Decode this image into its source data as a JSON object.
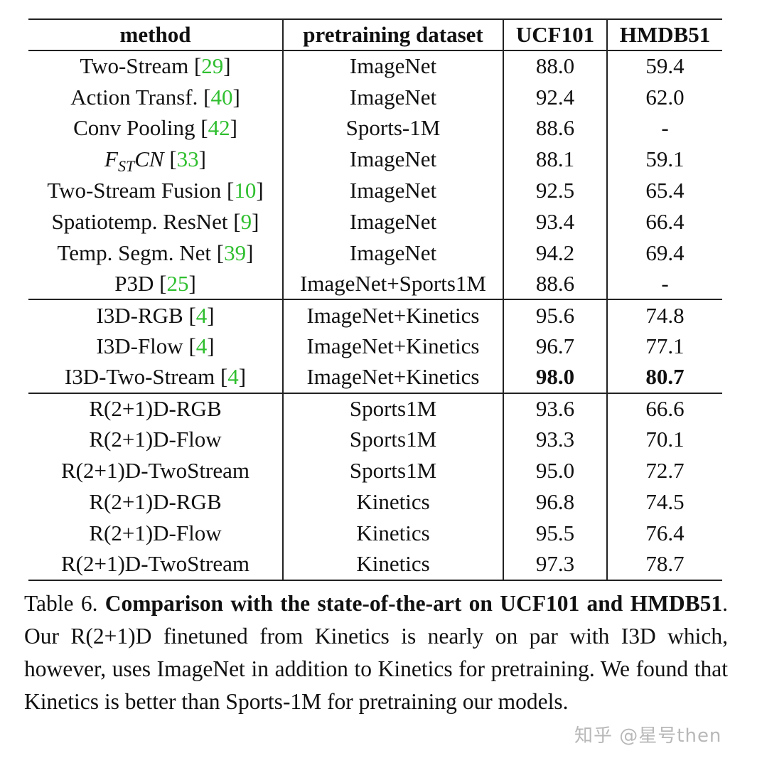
{
  "table": {
    "headers": {
      "method": "method",
      "pretraining": "pretraining dataset",
      "ucf": "UCF101",
      "hmdb": "HMDB51"
    },
    "groups": [
      {
        "rows": [
          {
            "method": "Two-Stream",
            "ref": "29",
            "pretraining": "ImageNet",
            "ucf": "88.0",
            "hmdb": "59.4"
          },
          {
            "method": "Action Transf.",
            "ref": "40",
            "pretraining": "ImageNet",
            "ucf": "92.4",
            "hmdb": "62.0"
          },
          {
            "method": "Conv Pooling",
            "ref": "42",
            "pretraining": "Sports-1M",
            "ucf": "88.6",
            "hmdb": "-"
          },
          {
            "method": "F",
            "method_sub": "ST",
            "method_tail": "CN",
            "ref": "33",
            "pretraining": "ImageNet",
            "ucf": "88.1",
            "hmdb": "59.1"
          },
          {
            "method": "Two-Stream Fusion",
            "ref": "10",
            "pretraining": "ImageNet",
            "ucf": "92.5",
            "hmdb": "65.4"
          },
          {
            "method": "Spatiotemp. ResNet",
            "ref": "9",
            "pretraining": "ImageNet",
            "ucf": "93.4",
            "hmdb": "66.4"
          },
          {
            "method": "Temp. Segm. Net",
            "ref": "39",
            "pretraining": "ImageNet",
            "ucf": "94.2",
            "hmdb": "69.4"
          },
          {
            "method": "P3D",
            "ref": "25",
            "pretraining": "ImageNet+Sports1M",
            "ucf": "88.6",
            "hmdb": "-"
          }
        ]
      },
      {
        "rows": [
          {
            "method": "I3D-RGB",
            "ref": "4",
            "pretraining": "ImageNet+Kinetics",
            "ucf": "95.6",
            "hmdb": "74.8"
          },
          {
            "method": "I3D-Flow",
            "ref": "4",
            "pretraining": "ImageNet+Kinetics",
            "ucf": "96.7",
            "hmdb": "77.1"
          },
          {
            "method": "I3D-Two-Stream",
            "ref": "4",
            "pretraining": "ImageNet+Kinetics",
            "ucf": "98.0",
            "hmdb": "80.7",
            "bold": true
          }
        ]
      },
      {
        "rows": [
          {
            "method": "R(2+1)D-RGB",
            "pretraining": "Sports1M",
            "ucf": "93.6",
            "hmdb": "66.6"
          },
          {
            "method": "R(2+1)D-Flow",
            "pretraining": "Sports1M",
            "ucf": "93.3",
            "hmdb": "70.1"
          },
          {
            "method": "R(2+1)D-TwoStream",
            "pretraining": "Sports1M",
            "ucf": "95.0",
            "hmdb": "72.7"
          },
          {
            "method": "R(2+1)D-RGB",
            "pretraining": "Kinetics",
            "ucf": "96.8",
            "hmdb": "74.5"
          },
          {
            "method": "R(2+1)D-Flow",
            "pretraining": "Kinetics",
            "ucf": "95.5",
            "hmdb": "76.4"
          },
          {
            "method": "R(2+1)D-TwoStream",
            "pretraining": "Kinetics",
            "ucf": "97.3",
            "hmdb": "78.7"
          }
        ]
      }
    ]
  },
  "caption": {
    "label": "Table 6.",
    "bold_part1": "Comparison with the state-of-the-art on UCF101 and",
    "bold_part2": "HMDB51",
    "body": ". Our R(2+1)D finetuned from Kinetics is nearly on par with I3D which, however, uses ImageNet in addition to Kinetics for pretraining. We found that Kinetics is better than Sports-1M for pretraining our models."
  },
  "watermark": "知乎 @星号then"
}
